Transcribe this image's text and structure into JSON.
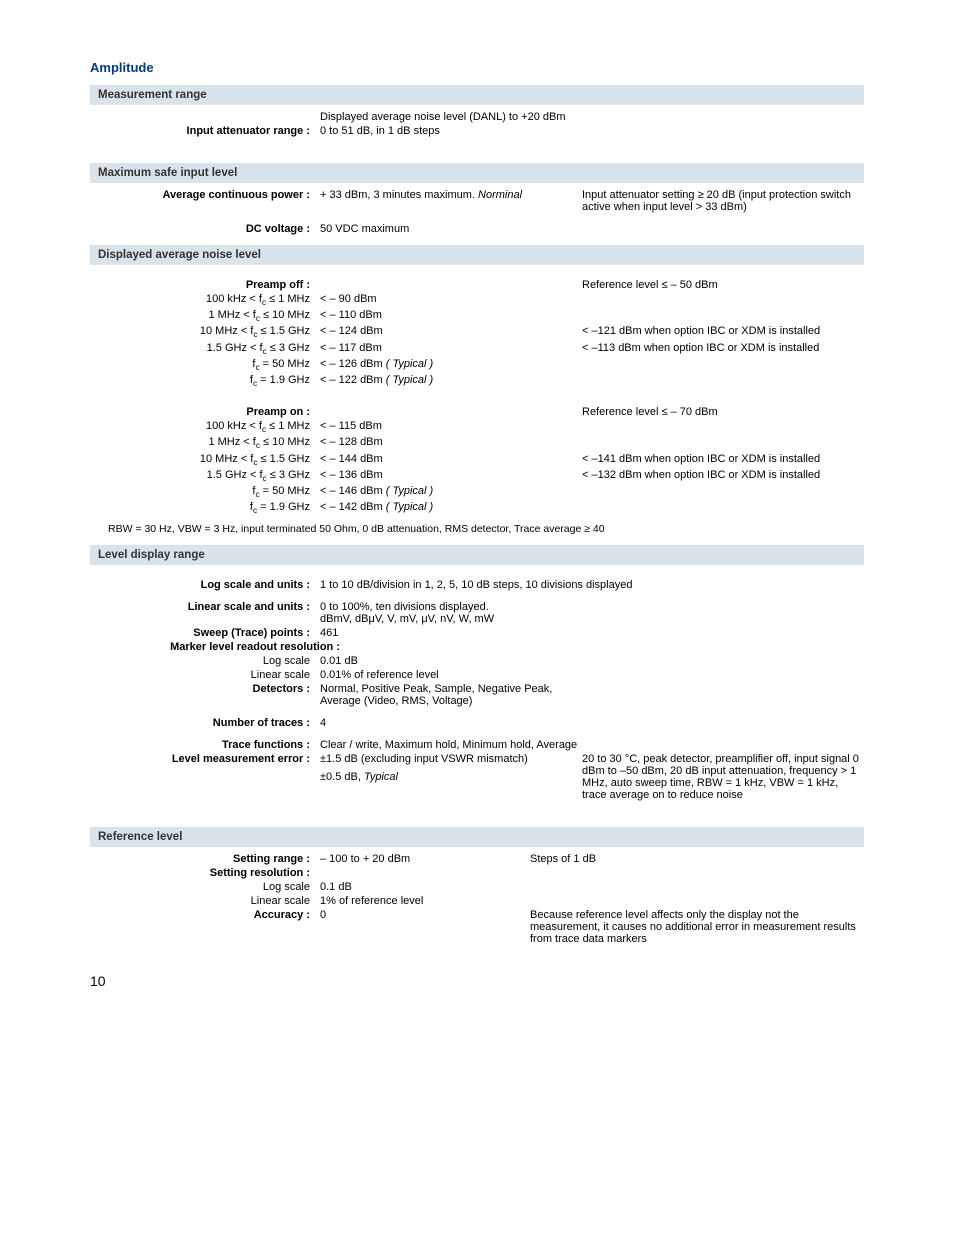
{
  "colors": {
    "title": "#003a80",
    "band_bg": "#d8e3ec"
  },
  "title": "Amplitude",
  "sections": {
    "meas_range": {
      "heading": "Measurement range",
      "danl_line": "Displayed average noise level (DANL) to +20 dBm",
      "input_att_label": "Input attenuator range :",
      "input_att_val": "0 to 51 dB, in 1 dB steps"
    },
    "max_safe": {
      "heading": "Maximum safe input level",
      "avg_label": "Average continuous power :",
      "avg_val_pre": "+ 33 dBm, 3 minutes maximum. ",
      "avg_val_it": "Norminal",
      "avg_note": "Input attenuator setting  ≥ 20 dB (input protection switch active when input level > 33 dBm)",
      "dc_label": "DC voltage :",
      "dc_val": "50 VDC maximum"
    },
    "danl": {
      "heading": "Displayed average noise level",
      "preamp_off_label": "Preamp off :",
      "preamp_off_ref": "Reference level ≤ – 50 dBm",
      "preamp_on_label": "Preamp on :",
      "preamp_on_ref": "Reference level ≤ – 70 dBm",
      "off_rows": [
        {
          "rng": "100 kHz < f_c  ≤   1 MHz",
          "val": "< – 90 dBm",
          "note": ""
        },
        {
          "rng": "1 MHz < f_c  ≤  10 MHz",
          "val": "< – 110 dBm",
          "note": ""
        },
        {
          "rng": "10 MHz < f_c  ≤  1.5 GHz",
          "val": "< – 124 dBm",
          "note": "< –121 dBm when option IBC or XDM is installed"
        },
        {
          "rng": "1.5 GHz < f_c  ≤    3 GHz",
          "val": "< – 117 dBm",
          "note": "< –113 dBm when option IBC or XDM is installed"
        },
        {
          "rng": "f_c  =  50 MHz",
          "val": "< – 126 dBm",
          "typ": " ( Typical )",
          "note": ""
        },
        {
          "rng": "f_c  =  1.9 GHz",
          "val": "< – 122 dBm ",
          "typ": " ( Typical )",
          "note": ""
        }
      ],
      "on_rows": [
        {
          "rng": "100 kHz < f_c  ≤   1 MHz",
          "val": "<  – 115 dBm",
          "note": ""
        },
        {
          "rng": "1 MHz <  f_c   ≤  10 MHz",
          "val": "<  – 128 dBm",
          "note": ""
        },
        {
          "rng": "10 MHz < f_c  ≤  1.5 GHz",
          "val": "<  – 144 dBm",
          "note": "< –141 dBm when option IBC or XDM is installed"
        },
        {
          "rng": "1.5 GHz < f_c  ≤    3 GHz",
          "val": "<  – 136 dBm",
          "note": "< –132 dBm when option IBC or XDM is installed"
        },
        {
          "rng": "f_c   =  50 MHz",
          "val": "<  – 146 dBm",
          "typ": " ( Typical )",
          "note": ""
        },
        {
          "rng": "f_c   =  1.9 GHz",
          "val": "<  – 142 dBm",
          "typ": " ( Typical )",
          "note": ""
        }
      ],
      "footnote": "RBW = 30 Hz, VBW = 3 Hz,  input terminated 50 Ohm,  0 dB attenuation, RMS detector,  Trace average ≥ 40"
    },
    "level_display": {
      "heading": "Level display range",
      "log_label": "Log scale and units :",
      "log_val": "1 to 10 dB/division in 1, 2, 5, 10 dB steps, 10 divisions displayed",
      "lin_label": "Linear scale and units :",
      "lin_val1": "0 to 100%, ten divisions displayed.",
      "lin_val2": "dBmV, dBμV, V, mV, μV, nV, W, mW",
      "sweep_label": "Sweep (Trace) points :",
      "sweep_val": "461",
      "marker_label": "Marker level readout resolution :",
      "marker_log_label": "Log scale",
      "marker_log_val": "0.01 dB",
      "marker_lin_label": "Linear scale",
      "marker_lin_val": "0.01% of reference level",
      "det_label": "Detectors :",
      "det_val1": "Normal, Positive Peak, Sample, Negative Peak,",
      "det_val2": "Average (Video, RMS, Voltage)",
      "ntraces_label": "Number of traces :",
      "ntraces_val": "4",
      "tfunc_label": "Trace functions :",
      "tfunc_val": "Clear / write, Maximum hold, Minimum hold, Average",
      "lme_label": "Level measurement error :",
      "lme_val1": "±1.5 dB (excluding input VSWR mismatch)",
      "lme_val2_pre": "±0.5 dB,  ",
      "lme_val2_it": "Typical",
      "lme_note": "20 to 30 °C, peak detector, preamplifier off, input signal 0 dBm to –50 dBm, 20 dB input attenuation, frequency > 1 MHz, auto sweep time, RBW = 1 kHz, VBW = 1 kHz, trace average on to reduce noise"
    },
    "ref_level": {
      "heading": "Reference level",
      "set_rng_label": "Setting range :",
      "set_rng_val": "– 100 to + 20 dBm",
      "set_rng_note": "Steps of 1 dB",
      "set_res_label": "Setting resolution :",
      "res_log_label": "Log scale",
      "res_log_val": "0.1 dB",
      "res_lin_label": "Linear scale",
      "res_lin_val": "1% of reference level",
      "acc_label": "Accuracy :",
      "acc_val": "0",
      "acc_note": "Because reference level affects only the display not the measurement, it causes no additional error in measurement results from trace data markers"
    }
  },
  "page_number": "10"
}
